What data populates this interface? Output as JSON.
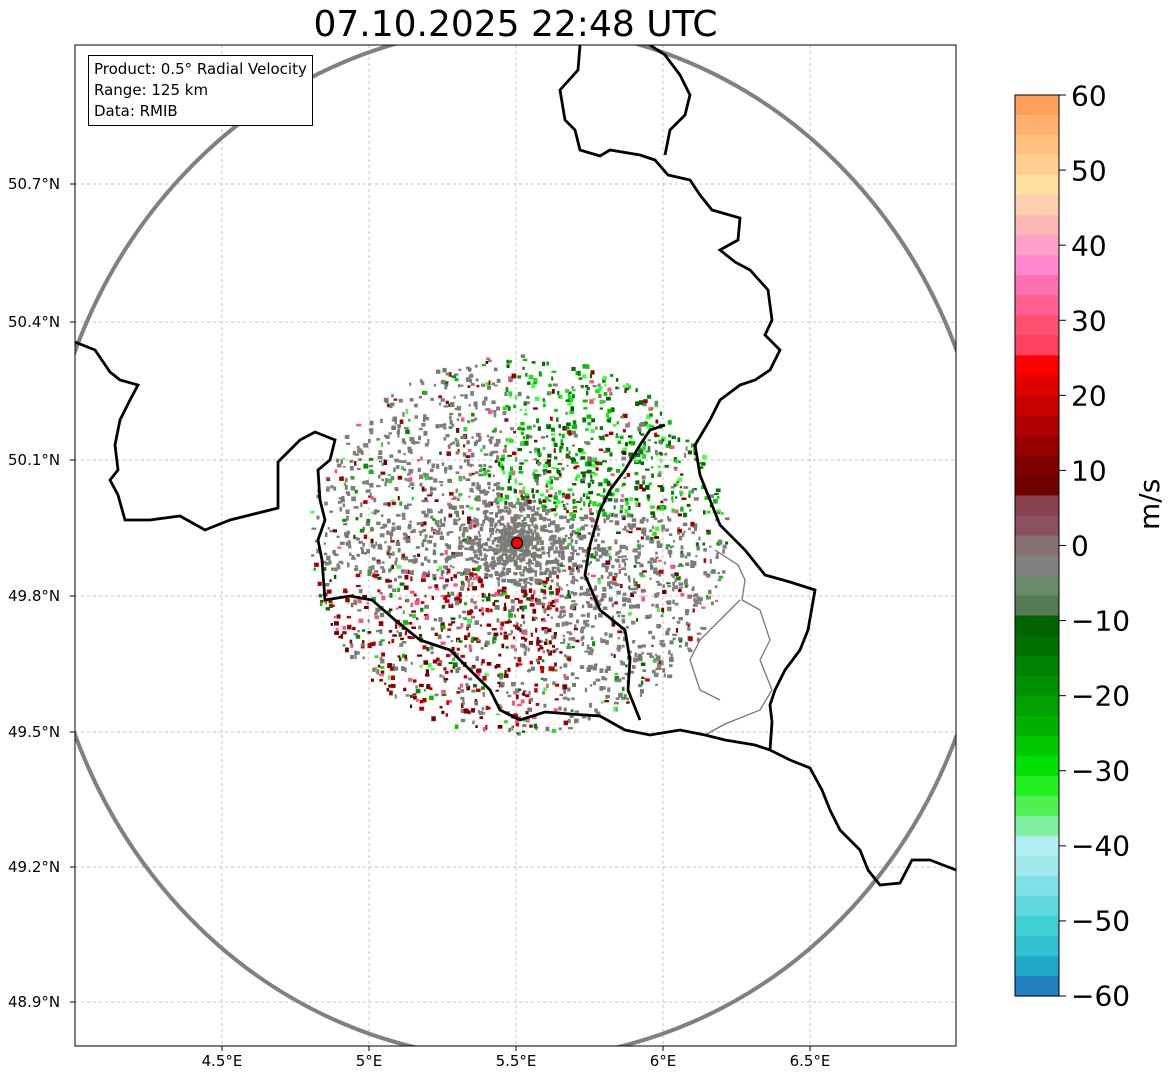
{
  "title": "07.10.2025 22:48 UTC",
  "info": {
    "product": "Product: 0.5° Radial Velocity",
    "range": "Range: 125 km",
    "data": "Data: RMIB"
  },
  "axes": {
    "lon_ticks": [
      "4.5°E",
      "5°E",
      "5.5°E",
      "6°E",
      "6.5°E"
    ],
    "lat_ticks": [
      "50.7°N",
      "50.4°N",
      "50.1°N",
      "49.8°N",
      "49.5°N",
      "49.2°N",
      "48.9°N"
    ]
  },
  "colorbar": {
    "unit": "m/s",
    "ticks": [
      "60",
      "50",
      "40",
      "30",
      "20",
      "10",
      "0",
      "−10",
      "−20",
      "−30",
      "−40",
      "−50",
      "−60"
    ],
    "min": -60,
    "max": 60
  },
  "radar": {
    "lon": 5.5,
    "lat": 49.91,
    "marker_color": "#ff0000",
    "ring_color": "#808080"
  },
  "colors": {
    "border": "#000000",
    "grid": "#b0b0b0"
  }
}
